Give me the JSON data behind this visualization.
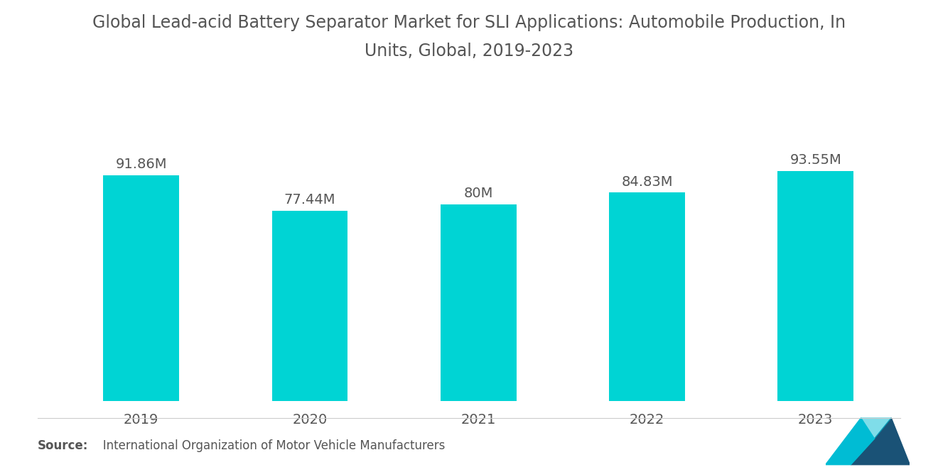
{
  "title_line1": "Global Lead-acid Battery Separator Market for SLI Applications: Automobile Production, In",
  "title_line2": "Units, Global, 2019-2023",
  "categories": [
    "2019",
    "2020",
    "2021",
    "2022",
    "2023"
  ],
  "values": [
    91.86,
    77.44,
    80.0,
    84.83,
    93.55
  ],
  "labels": [
    "91.86M",
    "77.44M",
    "80M",
    "84.83M",
    "93.55M"
  ],
  "bar_color": "#00D4D4",
  "background_color": "#ffffff",
  "title_fontsize": 17,
  "label_fontsize": 14,
  "tick_fontsize": 14,
  "source_bold": "Source:",
  "source_rest": "   International Organization of Motor Vehicle Manufacturers",
  "text_color": "#555555",
  "ylim": [
    0,
    115
  ],
  "bar_width": 0.45,
  "logo_teal": "#00BCD4",
  "logo_blue": "#1A5276"
}
